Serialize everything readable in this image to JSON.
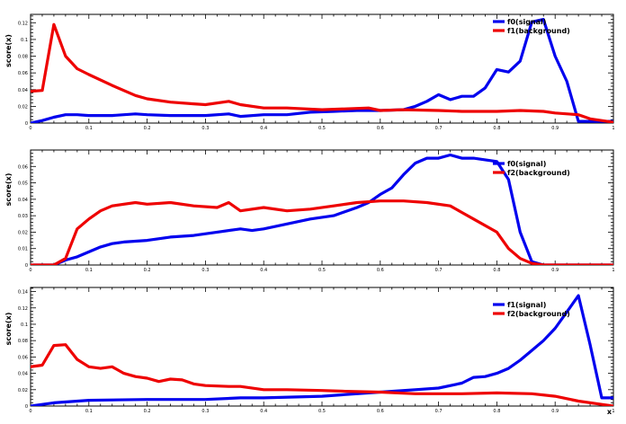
{
  "figure": {
    "background": "#ffffff",
    "series_colors": {
      "blue": "#0000ee",
      "red": "#ee0000"
    }
  },
  "chart_data": [
    {
      "type": "line",
      "ylabel": "score(x)",
      "xlabel": "",
      "xlim": [
        0,
        1
      ],
      "ylim": [
        0,
        0.13
      ],
      "x_ticks": [
        0,
        0.1,
        0.2,
        0.3,
        0.4,
        0.5,
        0.6,
        0.7,
        0.8,
        0.9,
        1
      ],
      "x_tick_labels": [
        "0",
        "0.1",
        "0.2",
        "0.3",
        "0.4",
        "0.5",
        "0.6",
        "0.7",
        "0.8",
        "0.9",
        "1"
      ],
      "y_ticks": [
        0,
        0.02,
        0.04,
        0.06,
        0.08,
        0.1,
        0.12
      ],
      "y_tick_labels": [
        "0",
        "0.02",
        "0.04",
        "0.06",
        "0.08",
        "0.1",
        "0.12"
      ],
      "legend_position": "top-right",
      "series": [
        {
          "name": "f0(signal)",
          "color": "#0000ee",
          "x": [
            0,
            0.02,
            0.04,
            0.06,
            0.08,
            0.1,
            0.14,
            0.18,
            0.2,
            0.24,
            0.3,
            0.34,
            0.36,
            0.4,
            0.44,
            0.48,
            0.52,
            0.56,
            0.6,
            0.64,
            0.66,
            0.68,
            0.7,
            0.72,
            0.74,
            0.76,
            0.78,
            0.8,
            0.82,
            0.84,
            0.86,
            0.88,
            0.9,
            0.92,
            0.94,
            0.96,
            0.98,
            1.0
          ],
          "y": [
            0,
            0.003,
            0.007,
            0.01,
            0.01,
            0.009,
            0.009,
            0.011,
            0.01,
            0.009,
            0.009,
            0.011,
            0.008,
            0.01,
            0.01,
            0.013,
            0.014,
            0.015,
            0.015,
            0.016,
            0.02,
            0.026,
            0.034,
            0.028,
            0.032,
            0.032,
            0.042,
            0.064,
            0.061,
            0.074,
            0.121,
            0.124,
            0.08,
            0.05,
            0.002,
            0.002,
            0.002,
            0.002
          ]
        },
        {
          "name": "f1(background)",
          "color": "#ee0000",
          "x": [
            0,
            0.02,
            0.04,
            0.06,
            0.08,
            0.1,
            0.14,
            0.18,
            0.2,
            0.24,
            0.28,
            0.3,
            0.34,
            0.36,
            0.4,
            0.44,
            0.5,
            0.54,
            0.58,
            0.6,
            0.64,
            0.7,
            0.74,
            0.8,
            0.84,
            0.88,
            0.9,
            0.94,
            0.96,
            1.0
          ],
          "y": [
            0.038,
            0.039,
            0.118,
            0.08,
            0.065,
            0.058,
            0.045,
            0.033,
            0.029,
            0.025,
            0.023,
            0.022,
            0.026,
            0.022,
            0.018,
            0.018,
            0.016,
            0.017,
            0.018,
            0.015,
            0.016,
            0.015,
            0.014,
            0.014,
            0.015,
            0.014,
            0.012,
            0.01,
            0.005,
            0.001
          ]
        }
      ]
    },
    {
      "type": "line",
      "ylabel": "score(x)",
      "xlabel": "",
      "xlim": [
        0,
        1
      ],
      "ylim": [
        0,
        0.07
      ],
      "x_ticks": [
        0,
        0.1,
        0.2,
        0.3,
        0.4,
        0.5,
        0.6,
        0.7,
        0.8,
        0.9,
        1
      ],
      "x_tick_labels": [
        "0",
        "0.1",
        "0.2",
        "0.3",
        "0.4",
        "0.5",
        "0.6",
        "0.7",
        "0.8",
        "0.9",
        "1"
      ],
      "y_ticks": [
        0,
        0.01,
        0.02,
        0.03,
        0.04,
        0.05,
        0.06
      ],
      "y_tick_labels": [
        "0",
        "0.01",
        "0.02",
        "0.03",
        "0.04",
        "0.05",
        "0.06"
      ],
      "legend_position": "top-right",
      "series": [
        {
          "name": "f0(signal)",
          "color": "#0000ee",
          "x": [
            0,
            0.04,
            0.06,
            0.08,
            0.1,
            0.12,
            0.14,
            0.16,
            0.2,
            0.24,
            0.28,
            0.32,
            0.36,
            0.38,
            0.4,
            0.44,
            0.48,
            0.52,
            0.56,
            0.58,
            0.6,
            0.62,
            0.64,
            0.66,
            0.68,
            0.7,
            0.72,
            0.74,
            0.76,
            0.8,
            0.82,
            0.84,
            0.86,
            0.88,
            0.9,
            0.92,
            0.96,
            1.0
          ],
          "y": [
            0,
            0,
            0.003,
            0.005,
            0.008,
            0.011,
            0.013,
            0.014,
            0.015,
            0.017,
            0.018,
            0.02,
            0.022,
            0.021,
            0.022,
            0.025,
            0.028,
            0.03,
            0.035,
            0.038,
            0.043,
            0.047,
            0.055,
            0.062,
            0.065,
            0.065,
            0.067,
            0.065,
            0.065,
            0.063,
            0.052,
            0.02,
            0.002,
            0,
            0,
            0,
            0,
            0
          ]
        },
        {
          "name": "f2(background)",
          "color": "#ee0000",
          "x": [
            0,
            0.04,
            0.06,
            0.08,
            0.1,
            0.12,
            0.14,
            0.16,
            0.18,
            0.2,
            0.24,
            0.28,
            0.32,
            0.34,
            0.36,
            0.4,
            0.44,
            0.48,
            0.52,
            0.56,
            0.6,
            0.64,
            0.68,
            0.72,
            0.74,
            0.76,
            0.8,
            0.82,
            0.84,
            0.86,
            0.88,
            0.9,
            1.0
          ],
          "y": [
            0,
            0,
            0.004,
            0.022,
            0.028,
            0.033,
            0.036,
            0.037,
            0.038,
            0.037,
            0.038,
            0.036,
            0.035,
            0.038,
            0.033,
            0.035,
            0.033,
            0.034,
            0.036,
            0.038,
            0.039,
            0.039,
            0.038,
            0.036,
            0.032,
            0.028,
            0.02,
            0.01,
            0.004,
            0.001,
            0,
            0,
            0
          ]
        }
      ]
    },
    {
      "type": "line",
      "ylabel": "score(x)",
      "xlabel": "x",
      "xlim": [
        0,
        1
      ],
      "ylim": [
        0,
        0.145
      ],
      "x_ticks": [
        0,
        0.1,
        0.2,
        0.3,
        0.4,
        0.5,
        0.6,
        0.7,
        0.8,
        0.9,
        1
      ],
      "x_tick_labels": [
        "0",
        "0.1",
        "0.2",
        "0.3",
        "0.4",
        "0.5",
        "0.6",
        "0.7",
        "0.8",
        "0.9",
        "1"
      ],
      "y_ticks": [
        0,
        0.02,
        0.04,
        0.06,
        0.08,
        0.1,
        0.12,
        0.14
      ],
      "y_tick_labels": [
        "0",
        "0.02",
        "0.04",
        "0.06",
        "0.08",
        "0.1",
        "0.12",
        "0.14"
      ],
      "legend_position": "top-right",
      "series": [
        {
          "name": "f1(signal)",
          "color": "#0000ee",
          "x": [
            0,
            0.04,
            0.1,
            0.2,
            0.3,
            0.36,
            0.4,
            0.5,
            0.58,
            0.6,
            0.66,
            0.7,
            0.74,
            0.76,
            0.78,
            0.8,
            0.82,
            0.84,
            0.86,
            0.88,
            0.9,
            0.92,
            0.94,
            0.96,
            0.98,
            1.0
          ],
          "y": [
            0,
            0.004,
            0.007,
            0.008,
            0.008,
            0.01,
            0.01,
            0.012,
            0.016,
            0.017,
            0.02,
            0.022,
            0.028,
            0.035,
            0.036,
            0.04,
            0.046,
            0.056,
            0.068,
            0.08,
            0.095,
            0.115,
            0.135,
            0.075,
            0.01,
            0.01
          ]
        },
        {
          "name": "f2(background)",
          "color": "#ee0000",
          "x": [
            0,
            0.02,
            0.04,
            0.06,
            0.08,
            0.1,
            0.12,
            0.14,
            0.16,
            0.18,
            0.2,
            0.22,
            0.24,
            0.26,
            0.28,
            0.3,
            0.34,
            0.36,
            0.4,
            0.44,
            0.5,
            0.54,
            0.6,
            0.66,
            0.7,
            0.74,
            0.8,
            0.86,
            0.9,
            0.94,
            0.98,
            1.0
          ],
          "y": [
            0.048,
            0.05,
            0.074,
            0.075,
            0.057,
            0.048,
            0.046,
            0.048,
            0.04,
            0.036,
            0.034,
            0.03,
            0.033,
            0.032,
            0.027,
            0.025,
            0.024,
            0.024,
            0.02,
            0.02,
            0.019,
            0.018,
            0.017,
            0.015,
            0.015,
            0.015,
            0.016,
            0.015,
            0.012,
            0.006,
            0.002,
            0
          ]
        }
      ]
    }
  ]
}
